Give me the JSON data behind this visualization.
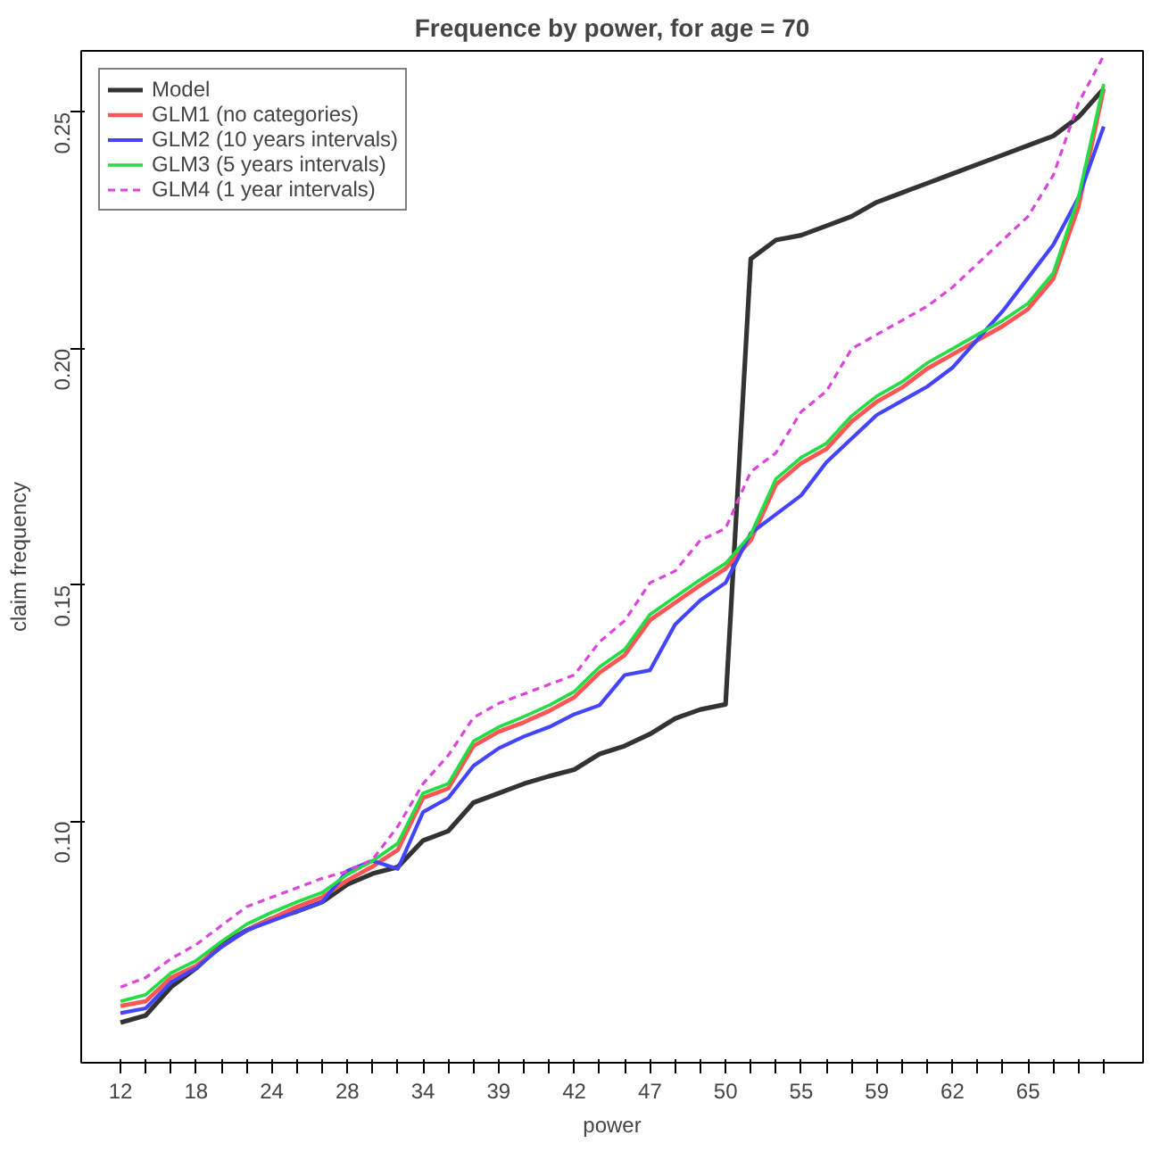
{
  "chart_data": {
    "type": "line",
    "title": "Frequence by power, for age = 70",
    "xlabel": "power",
    "ylabel": "claim frequency",
    "categories": [
      "12",
      null,
      null,
      "18",
      null,
      null,
      "24",
      null,
      null,
      "28",
      null,
      null,
      "34",
      null,
      null,
      "39",
      null,
      null,
      "42",
      null,
      null,
      "47",
      null,
      null,
      "50",
      null,
      null,
      "55",
      null,
      null,
      "59",
      null,
      null,
      "62",
      null,
      null,
      "65",
      null,
      null,
      null
    ],
    "series": [
      {
        "name": "Model",
        "color": "#333333",
        "line_style": "solid",
        "values": [
          0.0575,
          0.059,
          0.065,
          0.069,
          0.074,
          0.077,
          0.0795,
          0.081,
          0.083,
          0.0867,
          0.089,
          0.0904,
          0.096,
          0.098,
          0.104,
          0.106,
          0.108,
          0.1096,
          0.111,
          0.1143,
          0.116,
          0.1185,
          0.1218,
          0.1237,
          0.1248,
          0.219,
          0.223,
          0.224,
          0.226,
          0.228,
          0.231,
          0.233,
          0.235,
          0.237,
          0.239,
          0.241,
          0.243,
          0.245,
          0.249,
          0.255
        ]
      },
      {
        "name": "GLM1 (no categories)",
        "color": "#ff5555",
        "line_style": "solid",
        "values": [
          0.061,
          0.062,
          0.067,
          0.0695,
          0.0735,
          0.077,
          0.0795,
          0.082,
          0.084,
          0.0876,
          0.0905,
          0.094,
          0.105,
          0.107,
          0.116,
          0.119,
          0.121,
          0.1234,
          0.1263,
          0.1315,
          0.1352,
          0.1426,
          0.1463,
          0.15,
          0.1535,
          0.1595,
          0.1713,
          0.1758,
          0.1788,
          0.1846,
          0.1888,
          0.1918,
          0.1958,
          0.1988,
          0.2018,
          0.2048,
          0.2084,
          0.2148,
          0.23,
          0.255
        ]
      },
      {
        "name": "GLM2 (10 years intervals)",
        "color": "#4444ff",
        "line_style": "solid",
        "values": [
          0.0595,
          0.0605,
          0.066,
          0.069,
          0.0735,
          0.077,
          0.079,
          0.081,
          0.083,
          0.0896,
          0.0917,
          0.09,
          0.102,
          0.105,
          0.1118,
          0.1155,
          0.118,
          0.12,
          0.1227,
          0.1246,
          0.131,
          0.132,
          0.1417,
          0.1468,
          0.1505,
          0.161,
          0.165,
          0.169,
          0.176,
          0.181,
          0.186,
          0.189,
          0.192,
          0.196,
          0.202,
          0.208,
          0.215,
          0.222,
          0.232,
          0.247
        ]
      },
      {
        "name": "GLM3 (5 years intervals)",
        "color": "#22dd44",
        "line_style": "solid",
        "values": [
          0.062,
          0.0634,
          0.068,
          0.0706,
          0.0746,
          0.0783,
          0.0808,
          0.083,
          0.085,
          0.0888,
          0.0917,
          0.0954,
          0.106,
          0.108,
          0.117,
          0.12,
          0.1222,
          0.1246,
          0.1275,
          0.1327,
          0.1364,
          0.1438,
          0.1475,
          0.1512,
          0.1546,
          0.1607,
          0.1725,
          0.177,
          0.18,
          0.1858,
          0.19,
          0.193,
          0.197,
          0.2,
          0.203,
          0.206,
          0.2096,
          0.216,
          0.232,
          0.256
        ]
      },
      {
        "name": "GLM4 (1 year intervals)",
        "color": "#dd44dd",
        "line_style": "dashed",
        "values": [
          0.065,
          0.067,
          0.071,
          0.074,
          0.078,
          0.082,
          0.084,
          0.086,
          0.088,
          0.0895,
          0.092,
          0.099,
          0.108,
          0.114,
          0.122,
          0.125,
          0.127,
          0.129,
          0.131,
          0.138,
          0.1425,
          0.1505,
          0.153,
          0.1595,
          0.162,
          0.174,
          0.178,
          0.1867,
          0.191,
          0.2,
          0.203,
          0.206,
          0.209,
          0.213,
          0.218,
          0.223,
          0.228,
          0.2367,
          0.252,
          0.262
        ]
      }
    ],
    "ylim": [
      0.049,
      0.263
    ],
    "yticks": [
      {
        "value": 0.1,
        "label": "0.10"
      },
      0.15,
      {
        "value": 0.2,
        "label": "0.20"
      },
      0.25
    ],
    "grid": false,
    "legend": "top left",
    "marker": "none"
  }
}
